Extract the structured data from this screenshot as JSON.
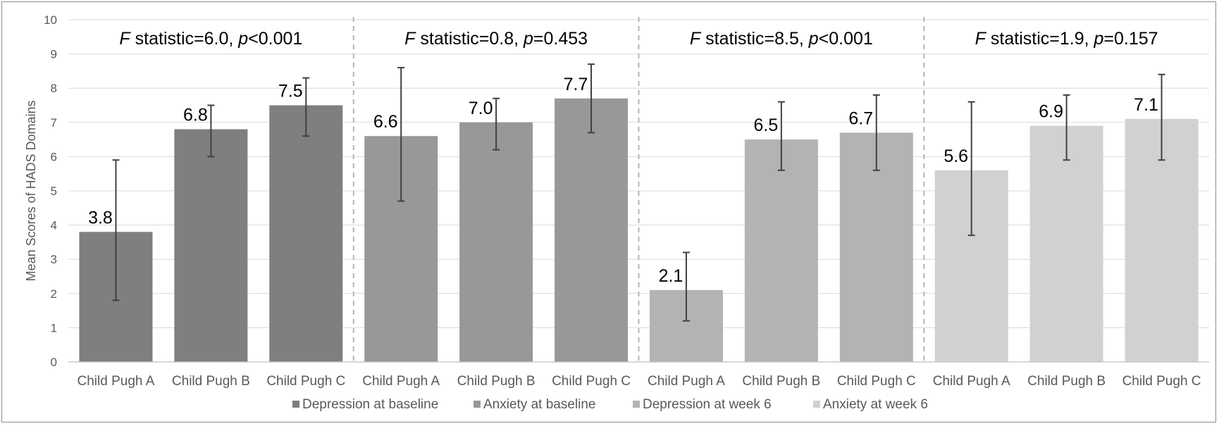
{
  "chart_data": {
    "type": "bar",
    "ylabel": "Mean Scores of HADS Domains",
    "ylim": [
      0,
      10
    ],
    "yticks": [
      0,
      1,
      2,
      3,
      4,
      5,
      6,
      7,
      8,
      9,
      10
    ],
    "grid": true,
    "legend_position": "bottom",
    "categories": [
      "Child Pugh A",
      "Child Pugh B",
      "Child Pugh C"
    ],
    "series": [
      {
        "name": "Depression at baseline",
        "color": "#7f7f7f",
        "values": [
          3.8,
          6.8,
          7.5
        ],
        "labels": [
          "3.8",
          "6.8",
          "7.5"
        ],
        "err_low": [
          1.8,
          6.0,
          6.6
        ],
        "err_high": [
          5.9,
          7.5,
          8.3
        ],
        "annotation": {
          "f_label": "F",
          "f_rest": " statistic=6.0, ",
          "p_label": "p",
          "p_rest": "<0.001"
        }
      },
      {
        "name": "Anxiety at baseline",
        "color": "#989898",
        "values": [
          6.6,
          7.0,
          7.7
        ],
        "labels": [
          "6.6",
          "7.0",
          "7.7"
        ],
        "err_low": [
          4.7,
          6.2,
          6.7
        ],
        "err_high": [
          8.6,
          7.7,
          8.7
        ],
        "annotation": {
          "f_label": "F",
          "f_rest": " statistic=0.8, ",
          "p_label": "p",
          "p_rest": "=0.453"
        }
      },
      {
        "name": "Depression at week 6",
        "color": "#b3b3b3",
        "values": [
          2.1,
          6.5,
          6.7
        ],
        "labels": [
          "2.1",
          "6.5",
          "6.7"
        ],
        "err_low": [
          1.2,
          5.6,
          5.6
        ],
        "err_high": [
          3.2,
          7.6,
          7.8
        ],
        "annotation": {
          "f_label": "F",
          "f_rest": " statistic=8.5, ",
          "p_label": "p",
          "p_rest": "<0.001"
        }
      },
      {
        "name": "Anxiety at week 6",
        "color": "#d1d1d1",
        "values": [
          5.6,
          6.9,
          7.1
        ],
        "labels": [
          "5.6",
          "6.9",
          "7.1"
        ],
        "err_low": [
          3.7,
          5.9,
          5.9
        ],
        "err_high": [
          7.6,
          7.8,
          8.4
        ],
        "annotation": {
          "f_label": "F",
          "f_rest": " statistic=1.9, ",
          "p_label": "p",
          "p_rest": "=0.157"
        }
      }
    ]
  }
}
